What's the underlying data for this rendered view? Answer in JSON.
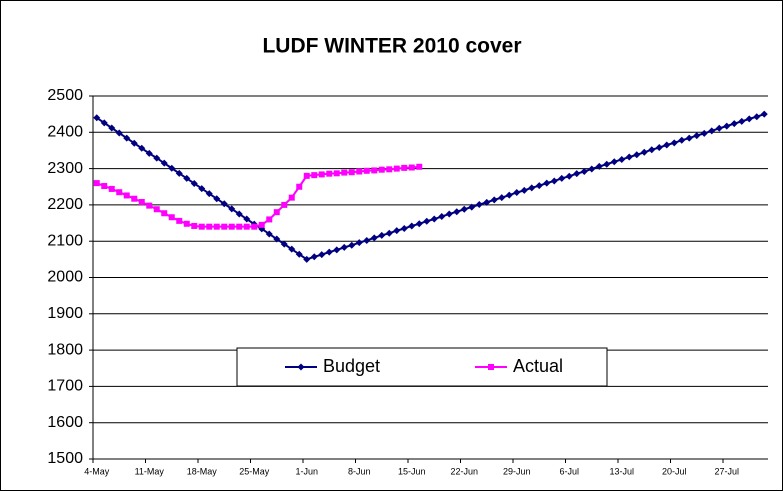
{
  "chart_data": {
    "type": "line",
    "title": "LUDF WINTER 2010 cover",
    "categories": [
      "4-May",
      null,
      null,
      null,
      null,
      null,
      null,
      "11-May",
      null,
      null,
      null,
      null,
      null,
      null,
      "18-May",
      null,
      null,
      null,
      null,
      null,
      null,
      "25-May",
      null,
      null,
      null,
      null,
      null,
      null,
      "1-Jun",
      null,
      null,
      null,
      null,
      null,
      null,
      "8-Jun",
      null,
      null,
      null,
      null,
      null,
      null,
      "15-Jun",
      null,
      null,
      null,
      null,
      null,
      null,
      "22-Jun",
      null,
      null,
      null,
      null,
      null,
      null,
      "29-Jun",
      null,
      null,
      null,
      null,
      null,
      null,
      "6-Jul",
      null,
      null,
      null,
      null,
      null,
      null,
      "13-Jul",
      null,
      null,
      null,
      null,
      null,
      null,
      "20-Jul",
      null,
      null,
      null,
      null,
      null,
      null,
      "27-Jul",
      null,
      null,
      null,
      null,
      null
    ],
    "series": [
      {
        "name": "Budget",
        "color": "#000080",
        "marker": "diamond",
        "values": [
          2440,
          2426,
          2412,
          2398,
          2384,
          2370,
          2356,
          2342,
          2329,
          2315,
          2301,
          2287,
          2273,
          2259,
          2245,
          2231,
          2217,
          2203,
          2189,
          2175,
          2161,
          2147,
          2134,
          2120,
          2106,
          2092,
          2078,
          2064,
          2050,
          2057,
          2063,
          2070,
          2076,
          2083,
          2089,
          2096,
          2102,
          2109,
          2116,
          2122,
          2129,
          2135,
          2142,
          2148,
          2155,
          2161,
          2168,
          2175,
          2181,
          2188,
          2194,
          2201,
          2207,
          2214,
          2220,
          2227,
          2234,
          2240,
          2247,
          2253,
          2260,
          2266,
          2273,
          2279,
          2286,
          2292,
          2299,
          2306,
          2312,
          2319,
          2325,
          2332,
          2338,
          2345,
          2352,
          2358,
          2365,
          2371,
          2378,
          2384,
          2391,
          2397,
          2404,
          2411,
          2417,
          2424,
          2430,
          2437,
          2443,
          2450
        ]
      },
      {
        "name": "Actual",
        "color": "#ff00ff",
        "marker": "square",
        "values": [
          2260,
          2252,
          2244,
          2235,
          2226,
          2217,
          2208,
          2198,
          2188,
          2177,
          2166,
          2156,
          2148,
          2142,
          2140,
          2140,
          2140,
          2140,
          2140,
          2140,
          2140,
          2140,
          2145,
          2160,
          2180,
          2200,
          2220,
          2250,
          2280,
          2282,
          2284,
          2286,
          2287,
          2289,
          2290,
          2292,
          2294,
          2295,
          2297,
          2298,
          2300,
          2302,
          2303,
          2305,
          null,
          null,
          null,
          null,
          null,
          null,
          null,
          null,
          null,
          null,
          null,
          null,
          null,
          null,
          null,
          null,
          null,
          null,
          null,
          null,
          null,
          null,
          null,
          null,
          null,
          null,
          null,
          null,
          null,
          null,
          null,
          null,
          null,
          null,
          null,
          null,
          null,
          null,
          null,
          null,
          null,
          null,
          null,
          null,
          null,
          null
        ]
      }
    ],
    "ylim": [
      1500,
      2500
    ],
    "yticks": [
      1500,
      1600,
      1700,
      1800,
      1900,
      2000,
      2100,
      2200,
      2300,
      2400,
      2500
    ],
    "grid": true,
    "legend": "bottom"
  }
}
